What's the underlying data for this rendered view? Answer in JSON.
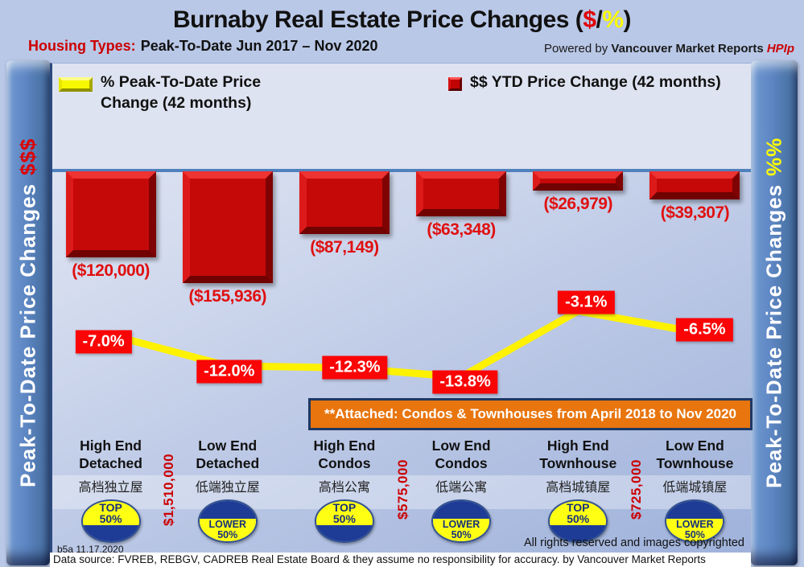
{
  "header": {
    "title_prefix": "Burnaby Real Estate Price Changes (",
    "title_dollar": "$",
    "title_slash": "/",
    "title_percent": "%",
    "title_suffix": ")",
    "housing_label": "Housing Types:",
    "housing_text": "Peak-To-Date Jun 2017 – Nov 2020",
    "powered_by": "Powered by ",
    "powered_brand": "Vancouver Market Reports ",
    "powered_hpi": "HPIp"
  },
  "pillars": {
    "left_text": "Peak-To-Date Price Changes ",
    "left_suffix": "$$$",
    "right_text": "Peak-To-Date  Price Changes  ",
    "right_suffix": "%%"
  },
  "legend": {
    "pct_label": "% Peak-To-Date Price Change (42 months)",
    "dollar_label": "$$ YTD Price Change (42 months)"
  },
  "note": "**Attached: Condos & Townhouses from April 2018 to Nov 2020",
  "chart_data": {
    "type": "bar",
    "title": "Burnaby Real Estate Price Changes ($/%)",
    "subtitle": "Housing Types: Peak-To-Date Jun 2017 - Nov 2020",
    "legend_position": "top",
    "baseline_value": 0,
    "categories": [
      "High End Detached",
      "Low End Detached",
      "High End Condos",
      "Low End Condos",
      "High End Townhouse",
      "Low End Townhouse"
    ],
    "categories_chinese": [
      "高档独立屋",
      "低端独立屋",
      "高档公寓",
      "低端公寓",
      "高档城镇屋",
      "低端城镇屋"
    ],
    "series": [
      {
        "name": "$$ YTD Price Change (42 months)",
        "type": "bar",
        "color": "#c50909",
        "values": [
          -120000,
          -155936,
          -87149,
          -63348,
          -26979,
          -39307
        ],
        "labels": [
          "($120,000)",
          "($155,936)",
          "($87,149)",
          "($63,348)",
          "($26,979)",
          "($39,307)"
        ]
      },
      {
        "name": "% Peak-To-Date Price Change (42 months)",
        "type": "line",
        "color": "#fff200",
        "values": [
          -7.0,
          -12.0,
          -12.3,
          -13.8,
          -3.1,
          -6.5
        ],
        "labels": [
          "-7.0%",
          "-12.0%",
          "-12.3%",
          "-13.8%",
          "-3.1%",
          "-6.5%"
        ],
        "label_bg": "#fa0505"
      }
    ],
    "badges": [
      "TOP 50%",
      "LOWER 50%",
      "TOP 50%",
      "LOWER 50%",
      "TOP 50%",
      "LOWER 50%"
    ],
    "price_markers": [
      {
        "text": "$1,510,000",
        "after_category": 0
      },
      {
        "text": "$575,000",
        "after_category": 2
      },
      {
        "text": "$725,000",
        "after_category": 4
      }
    ]
  },
  "footer": {
    "stamp": "b5a 11.17.2020",
    "rights": "All rights reserved and  images copyrighted",
    "datasource": "Data source: FVREB, REBGV, CADREB Real Estate Board & they assume no responsibility for accuracy. by Vancouver Market Reports"
  }
}
